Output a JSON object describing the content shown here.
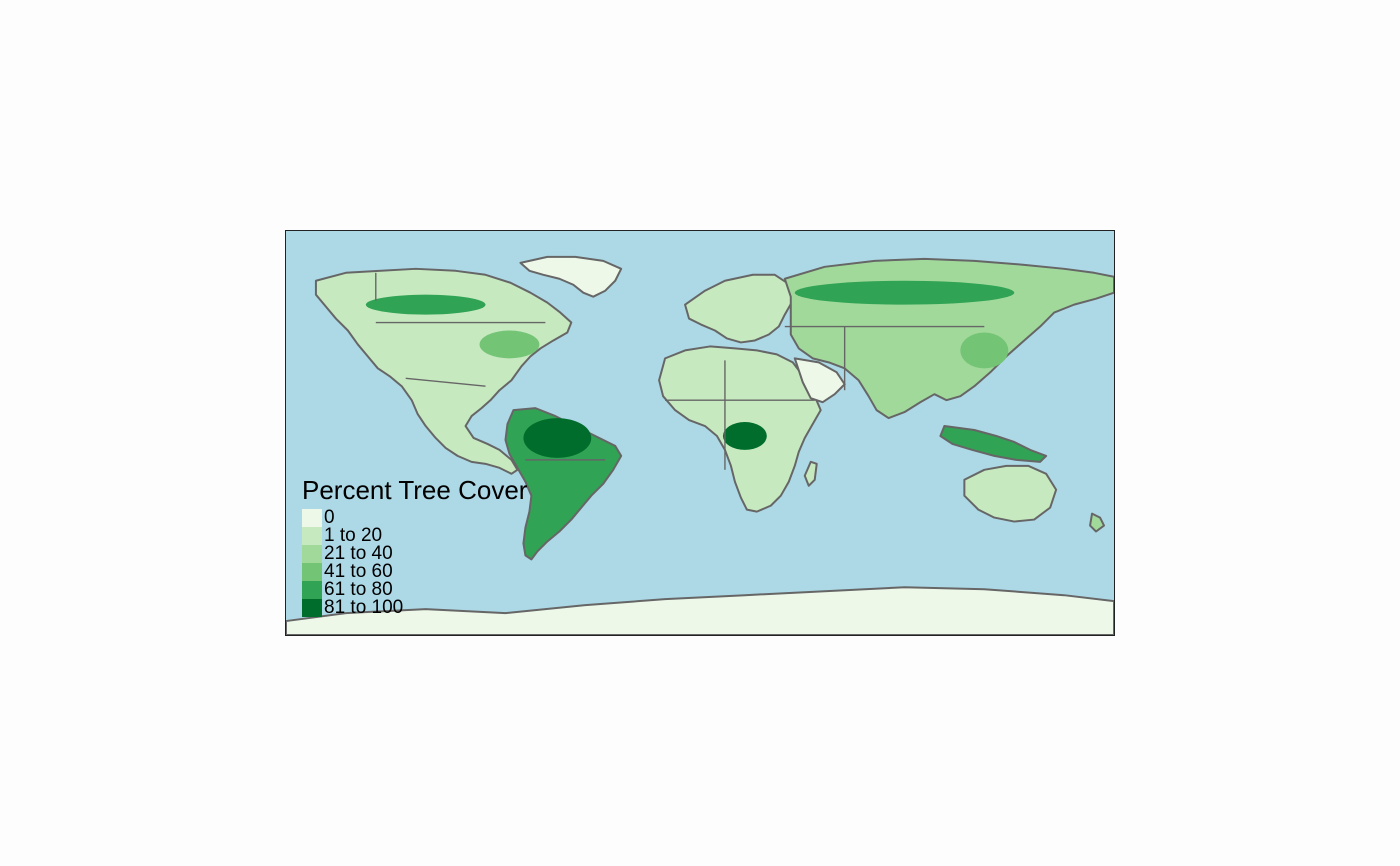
{
  "map": {
    "ocean_color": "#add8e6",
    "border_color": "#666666",
    "frame_color": "#222222"
  },
  "legend": {
    "title": "Percent Tree Cover",
    "classes": [
      {
        "label": "0",
        "color": "#edf8e9"
      },
      {
        "label": "1 to 20",
        "color": "#c7e9c0"
      },
      {
        "label": "21 to 40",
        "color": "#a1d99b"
      },
      {
        "label": "41 to 60",
        "color": "#74c476"
      },
      {
        "label": "61 to 80",
        "color": "#31a354"
      },
      {
        "label": "81 to 100",
        "color": "#006d2c"
      }
    ]
  }
}
